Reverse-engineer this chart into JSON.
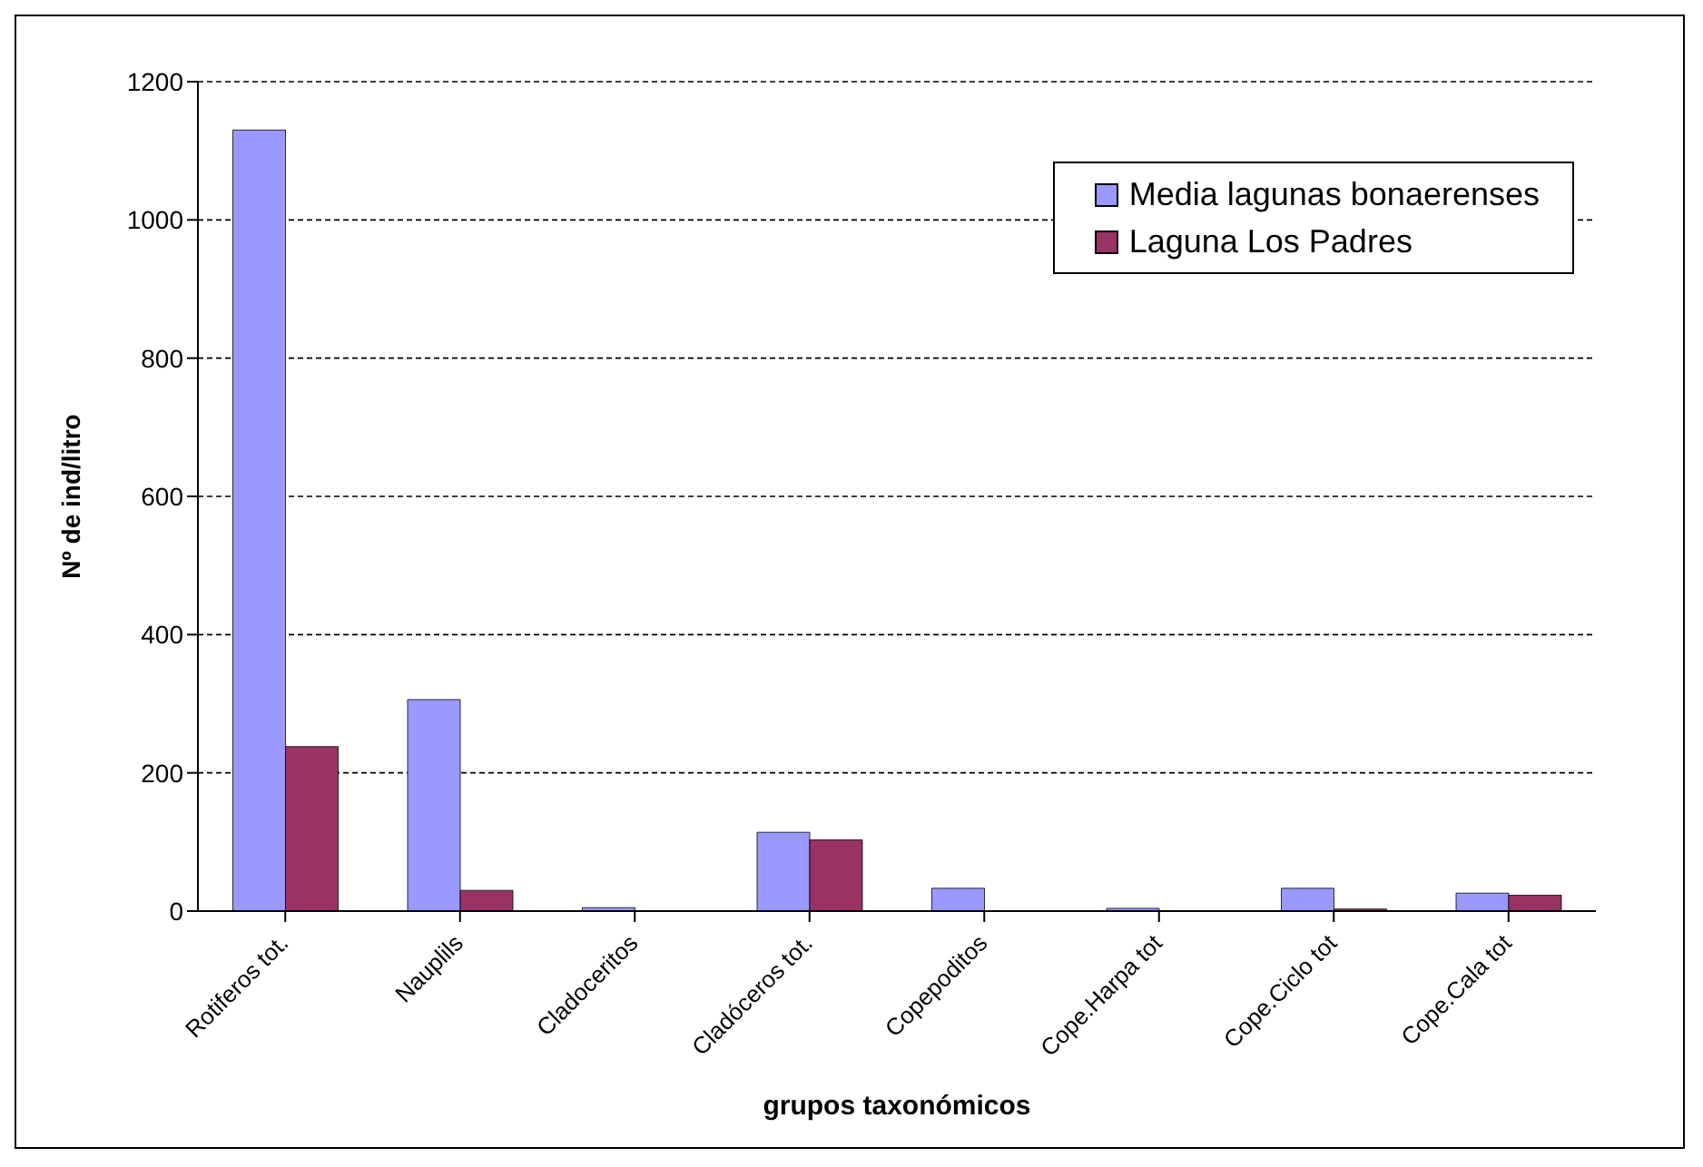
{
  "chart_data": {
    "type": "bar",
    "xlabel": "grupos taxonómicos",
    "ylabel": "Nº de ind/litro",
    "categories": [
      "Rotiferos tot.",
      "Nauplils",
      "Cladoceritos",
      "Cladóceros tot.",
      "Copepoditos",
      "Cope.Harpa tot",
      "Cope.Ciclo tot",
      "Cope.Cala tot"
    ],
    "series": [
      {
        "name": "Media lagunas bonaerenses",
        "color": "#9999ff",
        "values": [
          1130,
          306,
          5,
          114,
          33,
          4,
          33,
          26
        ]
      },
      {
        "name": "Laguna Los Padres",
        "color": "#993366",
        "values": [
          238,
          30,
          0,
          103,
          0,
          0,
          3,
          23
        ]
      }
    ],
    "ylim": [
      0,
      1200
    ],
    "yticks": [
      0,
      200,
      400,
      600,
      800,
      1000,
      1200
    ],
    "grid": "y",
    "legend": "top right"
  }
}
